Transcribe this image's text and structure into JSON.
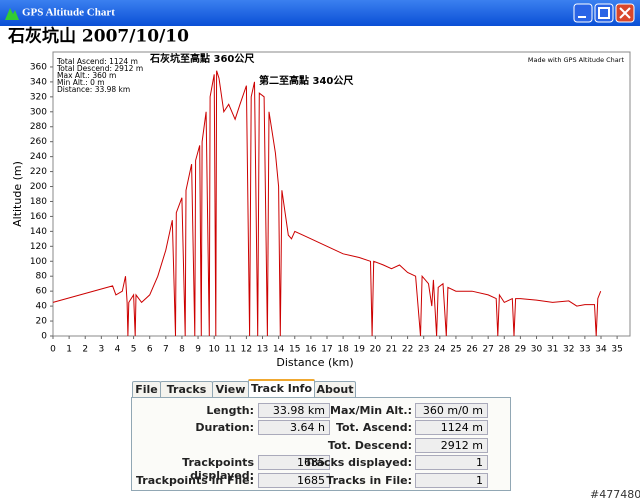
{
  "window": {
    "title": "GPS Altitude Chart"
  },
  "header": {
    "title": "石灰坑山 2007/10/10"
  },
  "chart_data": {
    "type": "line",
    "x_label": "Distance (km)",
    "y_label": "Altitude (m)",
    "stats": [
      "Total Ascend: 1124 m",
      "Total Descend: 2912 m",
      "Max Alt.: 360 m",
      "Min Alt.: 0 m",
      "Distance: 33.98 km"
    ],
    "credit": "Made with GPS Altitude Chart",
    "annotations": [
      "石灰坑至高點 360公尺",
      "第二至高點 340公尺"
    ],
    "x": [
      0,
      3.7,
      3.9,
      4.3,
      4.5,
      4.6,
      4.65,
      4.7,
      5.0,
      5.1,
      5.15,
      5.5,
      6,
      6.5,
      7,
      7.4,
      7.6,
      7.65,
      8,
      8.2,
      8.25,
      8.6,
      8.8,
      8.85,
      9.1,
      9.2,
      9.25,
      9.5,
      9.7,
      9.75,
      10,
      10.1,
      10.15,
      10.3,
      10.6,
      10.9,
      11.3,
      11.6,
      12,
      12.2,
      12.3,
      12.5,
      12.7,
      12.8,
      13.1,
      13.3,
      13.4,
      13.8,
      14,
      14.1,
      14.2,
      14.4,
      14.6,
      14.8,
      15,
      15.5,
      16,
      17,
      18,
      19,
      19.7,
      19.8,
      19.9,
      20.5,
      21,
      21.5,
      22,
      22.5,
      22.8,
      22.9,
      23.3,
      23.5,
      23.6,
      23.8,
      23.9,
      24.2,
      24.4,
      24.5,
      25,
      26,
      27,
      27.5,
      27.6,
      27.7,
      28,
      28.5,
      28.6,
      28.7,
      29,
      30,
      31,
      32,
      32.5,
      33,
      33.6,
      33.7,
      33.8,
      33.98
    ],
    "series": [
      {
        "color": "#cc0000",
        "values": [
          45,
          67,
          55,
          60,
          80,
          45,
          0,
          45,
          55,
          0,
          55,
          45,
          55,
          80,
          115,
          155,
          0,
          165,
          185,
          0,
          195,
          230,
          0,
          235,
          255,
          0,
          260,
          300,
          0,
          320,
          350,
          0,
          355,
          345,
          300,
          310,
          290,
          310,
          335,
          0,
          320,
          340,
          0,
          325,
          320,
          0,
          300,
          245,
          200,
          0,
          195,
          165,
          135,
          130,
          140,
          135,
          130,
          120,
          110,
          105,
          100,
          0,
          100,
          95,
          90,
          95,
          85,
          80,
          0,
          80,
          70,
          40,
          75,
          0,
          65,
          70,
          0,
          65,
          60,
          60,
          55,
          50,
          0,
          55,
          45,
          50,
          0,
          50,
          50,
          48,
          45,
          47,
          40,
          42,
          42,
          0,
          50,
          60
        ]
      }
    ],
    "xlim": [
      0,
      35.8
    ],
    "ylim": [
      0,
      380
    ],
    "xticks": [
      0,
      1,
      2,
      3,
      4,
      5,
      6,
      7,
      8,
      9,
      10,
      11,
      12,
      13,
      14,
      15,
      16,
      17,
      18,
      19,
      20,
      21,
      22,
      23,
      24,
      25,
      26,
      27,
      28,
      29,
      30,
      31,
      32,
      33,
      34,
      35
    ],
    "yticks": [
      0,
      20,
      40,
      60,
      80,
      100,
      120,
      140,
      160,
      180,
      200,
      220,
      240,
      260,
      280,
      300,
      320,
      340,
      360
    ]
  },
  "tabs": [
    "File",
    "Tracks",
    "View",
    "Track Info",
    "About"
  ],
  "active_tab": 3,
  "track_info": {
    "left": [
      {
        "label": "Length:",
        "value": "33.98 km"
      },
      {
        "label": "Duration:",
        "value": "3.64 h"
      },
      null,
      {
        "label": "Trackpoints displayed:",
        "value": "1685"
      },
      {
        "label": "Trackpoints in File:",
        "value": "1685"
      }
    ],
    "right": [
      {
        "label": "Max/Min Alt.:",
        "value": "360 m/0 m"
      },
      {
        "label": "Tot. Ascend:",
        "value": "1124 m"
      },
      {
        "label": "Tot. Descend:",
        "value": "2912 m"
      },
      {
        "label": "Tracks displayed:",
        "value": "1"
      },
      {
        "label": "Tracks in File:",
        "value": "1"
      }
    ]
  },
  "watermark": "#477480"
}
